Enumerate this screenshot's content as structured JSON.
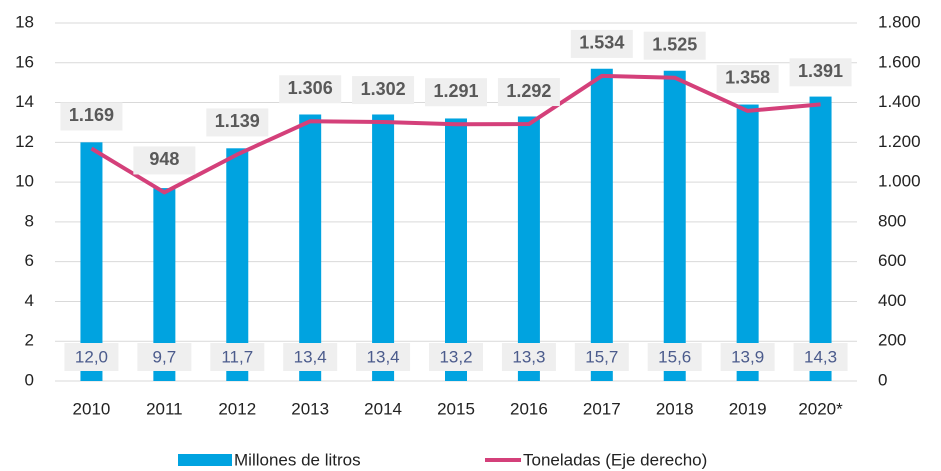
{
  "chart_data": {
    "type": "bar",
    "categories": [
      "2010",
      "2011",
      "2012",
      "2013",
      "2014",
      "2015",
      "2016",
      "2017",
      "2018",
      "2019",
      "2020*"
    ],
    "series": [
      {
        "name": "Millones de litros",
        "type": "bar",
        "color": "#00a3e0",
        "values": [
          12.0,
          9.7,
          11.7,
          13.4,
          13.4,
          13.2,
          13.3,
          15.7,
          15.6,
          13.9,
          14.3
        ],
        "value_labels": [
          "12,0",
          "9,7",
          "11,7",
          "13,4",
          "13,4",
          "13,2",
          "13,3",
          "15,7",
          "15,6",
          "13,9",
          "14,3"
        ]
      },
      {
        "name": "Toneladas (Eje derecho)",
        "type": "line",
        "axis": "y2",
        "color": "#d4407a",
        "values": [
          1169,
          948,
          1139,
          1306,
          1302,
          1291,
          1292,
          1534,
          1525,
          1358,
          1391
        ],
        "value_labels": [
          "1.169",
          "948",
          "1.139",
          "1.306",
          "1.302",
          "1.291",
          "1.292",
          "1.534",
          "1.525",
          "1.358",
          "1.391"
        ]
      }
    ],
    "ylim": [
      0,
      18
    ],
    "yticks": [
      0,
      2,
      4,
      6,
      8,
      10,
      12,
      14,
      16,
      18
    ],
    "y2lim": [
      0,
      1800
    ],
    "y2ticks": [
      0,
      200,
      400,
      600,
      800,
      {
        "value": 1000,
        "label": "1.000"
      },
      {
        "value": 1200,
        "label": "1.200"
      },
      {
        "value": 1400,
        "label": "1.400"
      },
      {
        "value": 1600,
        "label": "1.600"
      },
      {
        "value": 1800,
        "label": "1.800"
      }
    ],
    "grid": true,
    "legend": "bottom"
  }
}
